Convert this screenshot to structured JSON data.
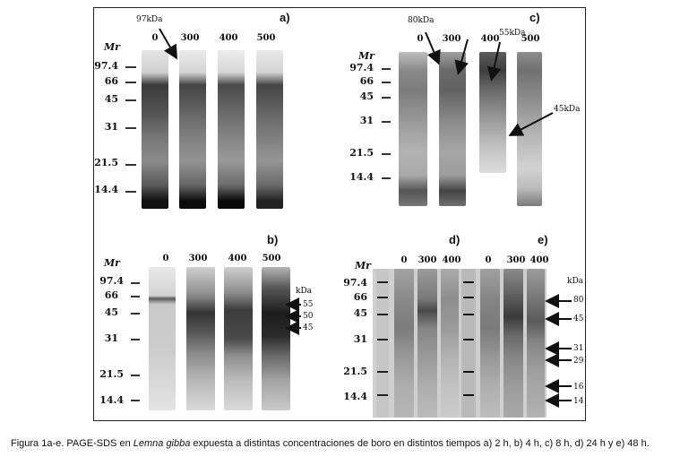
{
  "mr_title": "Mr",
  "kda_unit": "kDa",
  "panels": {
    "a": {
      "letter": "a)",
      "concentrations": [
        "0",
        "300",
        "400",
        "500"
      ],
      "markers": [
        "97.4",
        "66",
        "45",
        "31",
        "21.5",
        "14.4"
      ],
      "arrow_labels": [
        "97kDa"
      ]
    },
    "c": {
      "letter": "c)",
      "concentrations": [
        "0",
        "300",
        "400",
        "500"
      ],
      "markers": [
        "97.4",
        "66",
        "45",
        "31",
        "21.5",
        "14.4"
      ],
      "arrow_labels": [
        "80kDa",
        "55kDa",
        "45kDa"
      ]
    },
    "b": {
      "letter": "b)",
      "concentrations": [
        "0",
        "300",
        "400",
        "500"
      ],
      "markers": [
        "97.4",
        "66",
        "45",
        "31",
        "21.5",
        "14.4"
      ],
      "right_labels": [
        "55",
        "50",
        "45"
      ]
    },
    "d": {
      "letter": "d)",
      "concentrations": [
        "0",
        "300",
        "400"
      ],
      "markers": [
        "97.4",
        "66",
        "45",
        "31",
        "21.5",
        "14.4"
      ]
    },
    "e": {
      "letter": "e)",
      "concentrations": [
        "0",
        "300",
        "400"
      ],
      "right_labels": [
        "80",
        "45",
        "31",
        "29",
        "16",
        "14"
      ]
    }
  },
  "caption": {
    "prefix": "Figura 1a-e. PAGE-SDS en ",
    "species": "Lemna gibba",
    "suffix": " expuesta a distintas concentraciones de boro en distintos tiempos a) 2 h, b) 4 h, c) 8 h, d) 24 h y e) 48 h."
  }
}
